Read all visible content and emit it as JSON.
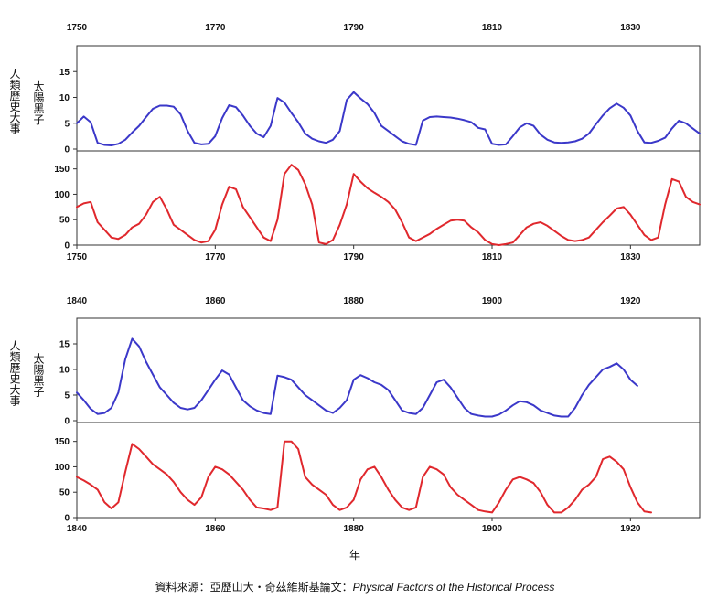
{
  "chart_data": [
    {
      "type": "line",
      "x_range": [
        1750,
        1840
      ],
      "x_ticks": [
        "1750",
        "1770",
        "1790",
        "1810",
        "1830"
      ],
      "ylabel_top": "太陽黑子",
      "ylabel_bottom": "人類歷史大事",
      "top_yticks": [
        "0",
        "5",
        "10",
        "15"
      ],
      "top_ylim": [
        0,
        20
      ],
      "bottom_yticks": [
        "0",
        "50",
        "100",
        "150"
      ],
      "bottom_ylim": [
        0,
        180
      ],
      "series": [
        {
          "color": "#3b38c9",
          "x": [
            1750,
            1751,
            1752,
            1753,
            1754,
            1755,
            1756,
            1757,
            1758,
            1759,
            1760,
            1761,
            1762,
            1763,
            1764,
            1765,
            1766,
            1767,
            1768,
            1769,
            1770,
            1771,
            1772,
            1773,
            1774,
            1775,
            1776,
            1777,
            1778,
            1779,
            1780,
            1781,
            1782,
            1783,
            1784,
            1785,
            1786,
            1787,
            1788,
            1789,
            1790,
            1791,
            1792,
            1793,
            1794,
            1795,
            1796,
            1797,
            1798,
            1799,
            1800,
            1801,
            1802,
            1803,
            1804,
            1805,
            1806,
            1807,
            1808,
            1809,
            1810,
            1811,
            1812,
            1813,
            1814,
            1815,
            1816,
            1817,
            1818,
            1819,
            1820,
            1821,
            1822,
            1823,
            1824,
            1825,
            1826,
            1827,
            1828,
            1829,
            1830,
            1831,
            1832,
            1833,
            1834,
            1835,
            1836,
            1837,
            1838,
            1839,
            1840
          ],
          "y": [
            5.0,
            6.3,
            5.2,
            1.2,
            0.8,
            0.7,
            1.0,
            1.8,
            3.2,
            4.5,
            6.2,
            7.8,
            8.4,
            8.4,
            8.2,
            6.7,
            3.5,
            1.2,
            0.9,
            1.0,
            2.5,
            6.0,
            8.5,
            8.1,
            6.5,
            4.5,
            3.0,
            2.3,
            4.5,
            9.9,
            9.0,
            7.0,
            5.2,
            3.0,
            2.0,
            1.5,
            1.2,
            1.8,
            3.5,
            9.5,
            11.0,
            9.8,
            8.7,
            7.0,
            4.5,
            3.5,
            2.5,
            1.5,
            1.0,
            0.8,
            5.5,
            6.2,
            6.3,
            6.2,
            6.1,
            5.9,
            5.6,
            5.2,
            4.1,
            3.8,
            1.0,
            0.8,
            0.9,
            2.5,
            4.2,
            5.0,
            4.5,
            2.8,
            1.8,
            1.3,
            1.2,
            1.3,
            1.5,
            2.0,
            3.0,
            4.8,
            6.5,
            7.9,
            8.8,
            8.0,
            6.5,
            3.5,
            1.3,
            1.2,
            1.6,
            2.2,
            4.0,
            5.5,
            5.0,
            4.0,
            3.0
          ]
        },
        {
          "color": "#e0282d",
          "x": [
            1750,
            1751,
            1752,
            1753,
            1754,
            1755,
            1756,
            1757,
            1758,
            1759,
            1760,
            1761,
            1762,
            1763,
            1764,
            1765,
            1766,
            1767,
            1768,
            1769,
            1770,
            1771,
            1772,
            1773,
            1774,
            1775,
            1776,
            1777,
            1778,
            1779,
            1780,
            1781,
            1782,
            1783,
            1784,
            1785,
            1786,
            1787,
            1788,
            1789,
            1790,
            1791,
            1792,
            1793,
            1794,
            1795,
            1796,
            1797,
            1798,
            1799,
            1800,
            1801,
            1802,
            1803,
            1804,
            1805,
            1806,
            1807,
            1808,
            1809,
            1810,
            1811,
            1812,
            1813,
            1814,
            1815,
            1816,
            1817,
            1818,
            1819,
            1820,
            1821,
            1822,
            1823,
            1824,
            1825,
            1826,
            1827,
            1828,
            1829,
            1830,
            1831,
            1832,
            1833,
            1834,
            1835,
            1836,
            1837,
            1838,
            1839,
            1840
          ],
          "y": [
            75,
            82,
            85,
            45,
            30,
            15,
            12,
            20,
            35,
            42,
            60,
            85,
            95,
            70,
            40,
            30,
            20,
            10,
            5,
            8,
            30,
            80,
            115,
            110,
            75,
            55,
            35,
            15,
            8,
            50,
            140,
            158,
            148,
            120,
            80,
            5,
            2,
            10,
            40,
            80,
            140,
            125,
            112,
            103,
            95,
            85,
            70,
            45,
            15,
            8,
            15,
            22,
            32,
            40,
            48,
            50,
            48,
            35,
            25,
            10,
            2,
            0,
            2,
            5,
            20,
            35,
            42,
            45,
            38,
            28,
            18,
            10,
            8,
            10,
            15,
            30,
            45,
            58,
            72,
            75,
            60,
            40,
            20,
            10,
            15,
            80,
            130,
            125,
            95,
            85,
            80
          ]
        }
      ]
    },
    {
      "type": "line",
      "x_range": [
        1840,
        1930
      ],
      "x_ticks": [
        "1840",
        "1860",
        "1880",
        "1900",
        "1920"
      ],
      "ylabel_top": "太陽黑子",
      "ylabel_bottom": "人類歷史大事",
      "top_yticks": [
        "0",
        "5",
        "10",
        "15"
      ],
      "top_ylim": [
        0,
        20
      ],
      "bottom_yticks": [
        "0",
        "50",
        "100",
        "150"
      ],
      "bottom_ylim": [
        0,
        180
      ],
      "series": [
        {
          "color": "#3b38c9",
          "x": [
            1840,
            1841,
            1842,
            1843,
            1844,
            1845,
            1846,
            1847,
            1848,
            1849,
            1850,
            1851,
            1852,
            1853,
            1854,
            1855,
            1856,
            1857,
            1858,
            1859,
            1860,
            1861,
            1862,
            1863,
            1864,
            1865,
            1866,
            1867,
            1868,
            1869,
            1870,
            1871,
            1872,
            1873,
            1874,
            1875,
            1876,
            1877,
            1878,
            1879,
            1880,
            1881,
            1882,
            1883,
            1884,
            1885,
            1886,
            1887,
            1888,
            1889,
            1890,
            1891,
            1892,
            1893,
            1894,
            1895,
            1896,
            1897,
            1898,
            1899,
            1900,
            1901,
            1902,
            1903,
            1904,
            1905,
            1906,
            1907,
            1908,
            1909,
            1910,
            1911,
            1912,
            1913,
            1914,
            1915,
            1916,
            1917,
            1918,
            1919,
            1920,
            1921
          ],
          "y": [
            5.5,
            4.0,
            2.3,
            1.3,
            1.5,
            2.5,
            5.5,
            12.0,
            16.0,
            14.5,
            11.5,
            9.0,
            6.5,
            5.0,
            3.5,
            2.5,
            2.2,
            2.5,
            4.0,
            6.0,
            8.0,
            9.8,
            9.0,
            6.5,
            4.0,
            2.8,
            2.0,
            1.5,
            1.3,
            8.8,
            8.5,
            8.0,
            6.5,
            5.0,
            4.0,
            3.0,
            2.0,
            1.5,
            2.5,
            4.0,
            8.0,
            8.9,
            8.3,
            7.5,
            7.0,
            6.0,
            4.0,
            2.0,
            1.5,
            1.3,
            2.5,
            5.0,
            7.5,
            8.0,
            6.5,
            4.5,
            2.5,
            1.3,
            1.0,
            0.8,
            0.8,
            1.2,
            2.0,
            3.0,
            3.8,
            3.6,
            3.0,
            2.0,
            1.5,
            1.0,
            0.8,
            0.8,
            2.5,
            5.0,
            7.0,
            8.5,
            10.0,
            10.5,
            11.2,
            10.0,
            8.0,
            6.8
          ]
        },
        {
          "color": "#e0282d",
          "x": [
            1840,
            1841,
            1842,
            1843,
            1844,
            1845,
            1846,
            1847,
            1848,
            1849,
            1850,
            1851,
            1852,
            1853,
            1854,
            1855,
            1856,
            1857,
            1858,
            1859,
            1860,
            1861,
            1862,
            1863,
            1864,
            1865,
            1866,
            1867,
            1868,
            1869,
            1870,
            1871,
            1872,
            1873,
            1874,
            1875,
            1876,
            1877,
            1878,
            1879,
            1880,
            1881,
            1882,
            1883,
            1884,
            1885,
            1886,
            1887,
            1888,
            1889,
            1890,
            1891,
            1892,
            1893,
            1894,
            1895,
            1896,
            1897,
            1898,
            1899,
            1900,
            1901,
            1902,
            1903,
            1904,
            1905,
            1906,
            1907,
            1908,
            1909,
            1910,
            1911,
            1912,
            1913,
            1914,
            1915,
            1916,
            1917,
            1918,
            1919,
            1920,
            1921,
            1922,
            1923
          ],
          "y": [
            80,
            73,
            65,
            55,
            30,
            18,
            30,
            90,
            145,
            135,
            120,
            105,
            95,
            85,
            70,
            50,
            35,
            25,
            40,
            80,
            100,
            95,
            85,
            70,
            55,
            35,
            20,
            18,
            15,
            20,
            150,
            150,
            135,
            80,
            65,
            55,
            45,
            25,
            15,
            20,
            35,
            75,
            95,
            100,
            80,
            55,
            35,
            20,
            15,
            20,
            80,
            100,
            95,
            85,
            60,
            45,
            35,
            25,
            15,
            12,
            10,
            30,
            55,
            75,
            80,
            75,
            68,
            50,
            25,
            10,
            10,
            20,
            35,
            55,
            65,
            80,
            115,
            120,
            110,
            95,
            60,
            30,
            12,
            10
          ]
        }
      ]
    }
  ],
  "xlabel": "年",
  "source": {
    "prefix": "資料來源：亞歷山大・奇茲維斯基論文：",
    "title": "Physical Factors of the Historical Process"
  }
}
